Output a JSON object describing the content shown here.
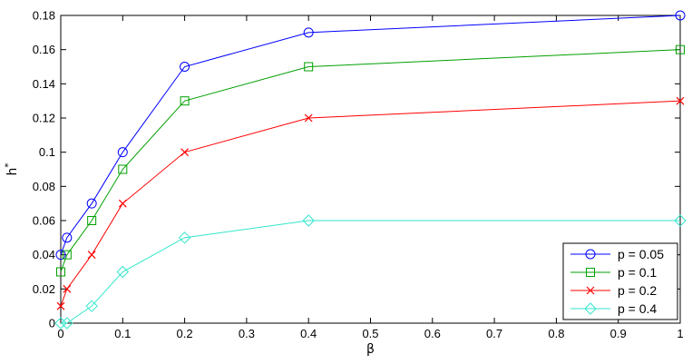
{
  "chart_data": {
    "type": "line",
    "xlabel": "β",
    "ylabel": "h",
    "ylabel_sup": "*",
    "xlim": [
      0,
      1
    ],
    "ylim": [
      0,
      0.18
    ],
    "xticks": [
      "0",
      "0.1",
      "0.2",
      "0.3",
      "0.4",
      "0.5",
      "0.6",
      "0.7",
      "0.8",
      "0.9",
      "1"
    ],
    "yticks": [
      "0",
      "0.02",
      "0.04",
      "0.06",
      "0.08",
      "0.1",
      "0.12",
      "0.14",
      "0.16",
      "0.18"
    ],
    "grid": false,
    "legend_position": "bottom-right",
    "x": [
      0,
      0.01,
      0.05,
      0.1,
      0.2,
      0.4,
      1
    ],
    "series": [
      {
        "name": "p = 0.05",
        "color": "#0000ff",
        "marker": "circle",
        "values": [
          0.04,
          0.05,
          0.07,
          0.1,
          0.15,
          0.17,
          0.18
        ]
      },
      {
        "name": "p = 0.1",
        "color": "#00a000",
        "marker": "square",
        "values": [
          0.03,
          0.04,
          0.06,
          0.09,
          0.13,
          0.15,
          0.16
        ]
      },
      {
        "name": "p = 0.2",
        "color": "#ff0000",
        "marker": "x",
        "values": [
          0.01,
          0.02,
          0.04,
          0.07,
          0.1,
          0.12,
          0.13
        ]
      },
      {
        "name": "p = 0.4",
        "color": "#33e6cc",
        "marker": "diamond",
        "values": [
          0.0,
          0.0,
          0.01,
          0.03,
          0.05,
          0.06,
          0.06
        ]
      }
    ]
  }
}
